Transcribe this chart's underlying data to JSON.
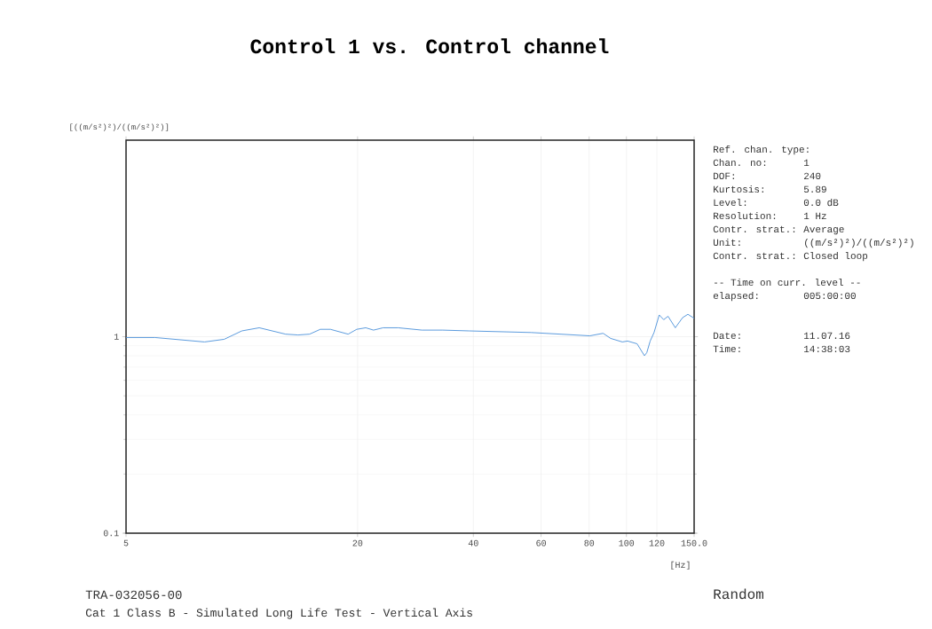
{
  "chart_data": {
    "type": "line",
    "title": "Control 1 vs. Control channel",
    "xlabel": "[Hz]",
    "ylabel": "[((m/s²)²)/((m/s²)²)]",
    "log": "xy",
    "xlim": [
      5,
      150
    ],
    "ylim": [
      0.1,
      10
    ],
    "xticks": [
      5,
      20,
      40,
      60,
      80,
      100,
      120,
      {
        "value": 150,
        "label": "150.0"
      }
    ],
    "yticks": [
      0.1,
      1
    ],
    "grid": true,
    "series": [
      {
        "color": "#4a90d9",
        "x": [
          5,
          5.95,
          8,
          9,
          10,
          11.1,
          13,
          14,
          15,
          16,
          17,
          18.9,
          19.9,
          21,
          22,
          23.3,
          25.5,
          29.4,
          33.3,
          39,
          56.5,
          80.3,
          87,
          91,
          97.6,
          100.7,
          106.6,
          111.4,
          113,
          115.3,
          118,
          121.7,
          125,
          128.3,
          134,
          140,
          144.5,
          150
        ],
        "values": [
          0.99,
          0.99,
          0.94,
          0.97,
          1.07,
          1.11,
          1.03,
          1.02,
          1.03,
          1.09,
          1.09,
          1.03,
          1.09,
          1.11,
          1.08,
          1.11,
          1.11,
          1.08,
          1.08,
          1.07,
          1.05,
          1.01,
          1.04,
          0.98,
          0.94,
          0.95,
          0.92,
          0.8,
          0.83,
          0.95,
          1.05,
          1.29,
          1.22,
          1.27,
          1.11,
          1.25,
          1.3,
          1.24
        ]
      }
    ],
    "annotations": [
      "Ref. chan. type:",
      "Chan. no:",
      "1",
      "DOF:",
      "240",
      "Kurtosis:",
      "5.89",
      "Level:",
      "0.0 dB",
      "Resolution:",
      "1 Hz",
      "Contr. strat.:",
      "Average",
      "Unit:",
      "((m/s²)²)/((m/s²)²)",
      "Contr. strat.:",
      "Closed loop",
      "-- Time on curr. level --",
      "elapsed:",
      "005:00:00",
      "Date:",
      "11.07.16",
      "Time:",
      "14:38:03",
      "TRA-032056-00",
      "Cat 1 Class B - Simulated Long Life Test - Vertical Axis",
      "Random"
    ]
  }
}
